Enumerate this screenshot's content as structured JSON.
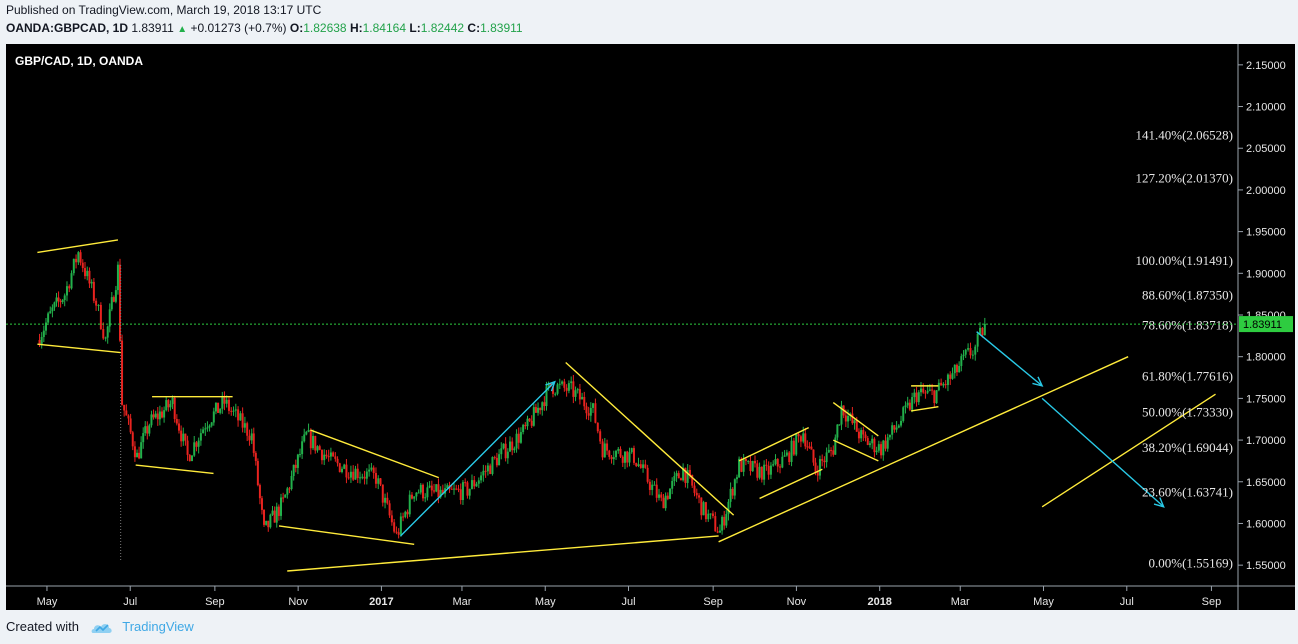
{
  "header": {
    "published": "Published on TradingView.com, March 19, 2018 13:17 UTC",
    "symbol": "OANDA:GBPCAD, 1D",
    "last": "1.83911",
    "change": "+0.01273 (+0.7%)",
    "open_label": "O:",
    "open": "1.82638",
    "high_label": "H:",
    "high": "1.84164",
    "low_label": "L:",
    "low": "1.82442",
    "close_label": "C:",
    "close": "1.83911"
  },
  "footer": {
    "created_with": "Created with",
    "brand": "TradingView"
  },
  "colors": {
    "background": "#000000",
    "up": "#22b04b",
    "down": "#e8231f",
    "trendline": "#ffeb3b",
    "arrow": "#29c9e6",
    "price_line": "#2ecc40"
  },
  "chart_data": {
    "type": "candlestick",
    "title": "GBP/CAD, 1D, OANDA",
    "x_ticks": [
      "May",
      "Jul",
      "Sep",
      "Nov",
      "2017",
      "Mar",
      "May",
      "Jul",
      "Sep",
      "Nov",
      "2018",
      "Mar",
      "May",
      "Jul",
      "Sep"
    ],
    "y_ticks": [
      "2.15000",
      "2.10000",
      "2.05000",
      "2.00000",
      "1.95000",
      "1.90000",
      "1.85000",
      "1.80000",
      "1.75000",
      "1.70000",
      "1.65000",
      "1.60000",
      "1.55000"
    ],
    "ylim": [
      1.525,
      2.175
    ],
    "current_price": 1.83911,
    "current_price_label": "1.83911",
    "price_path": [
      [
        "2016-04-24",
        1.82
      ],
      [
        "2016-05-05",
        1.855
      ],
      [
        "2016-05-14",
        1.875
      ],
      [
        "2016-05-24",
        1.925
      ],
      [
        "2016-06-06",
        1.865
      ],
      [
        "2016-06-13",
        1.82
      ],
      [
        "2016-06-22",
        1.905
      ],
      [
        "2016-06-25",
        1.745
      ],
      [
        "2016-07-06",
        1.68
      ],
      [
        "2016-07-15",
        1.72
      ],
      [
        "2016-08-01",
        1.745
      ],
      [
        "2016-08-12",
        1.68
      ],
      [
        "2016-08-25",
        1.72
      ],
      [
        "2016-09-08",
        1.745
      ],
      [
        "2016-09-28",
        1.705
      ],
      [
        "2016-10-07",
        1.59
      ],
      [
        "2016-10-21",
        1.625
      ],
      [
        "2016-11-07",
        1.705
      ],
      [
        "2016-11-25",
        1.675
      ],
      [
        "2016-12-08",
        1.665
      ],
      [
        "2016-12-28",
        1.655
      ],
      [
        "2017-01-12",
        1.585
      ],
      [
        "2017-01-25",
        1.64
      ],
      [
        "2017-02-15",
        1.635
      ],
      [
        "2017-03-05",
        1.64
      ],
      [
        "2017-03-25",
        1.675
      ],
      [
        "2017-04-18",
        1.715
      ],
      [
        "2017-05-05",
        1.765
      ],
      [
        "2017-05-20",
        1.76
      ],
      [
        "2017-06-05",
        1.735
      ],
      [
        "2017-06-12",
        1.69
      ],
      [
        "2017-07-05",
        1.68
      ],
      [
        "2017-07-25",
        1.625
      ],
      [
        "2017-08-10",
        1.665
      ],
      [
        "2017-08-25",
        1.615
      ],
      [
        "2017-09-06",
        1.59
      ],
      [
        "2017-09-20",
        1.67
      ],
      [
        "2017-10-10",
        1.66
      ],
      [
        "2017-10-25",
        1.68
      ],
      [
        "2017-11-06",
        1.71
      ],
      [
        "2017-11-15",
        1.665
      ],
      [
        "2017-11-28",
        1.69
      ],
      [
        "2017-12-04",
        1.74
      ],
      [
        "2017-12-20",
        1.7
      ],
      [
        "2018-01-02",
        1.69
      ],
      [
        "2018-01-15",
        1.72
      ],
      [
        "2018-01-28",
        1.755
      ],
      [
        "2018-02-10",
        1.755
      ],
      [
        "2018-02-25",
        1.78
      ],
      [
        "2018-03-05",
        1.8
      ],
      [
        "2018-03-12",
        1.81
      ],
      [
        "2018-03-19",
        1.83911
      ]
    ],
    "fibonacci_levels": [
      {
        "label": "141.40%(2.06528)",
        "value": 2.06528
      },
      {
        "label": "127.20%(2.01370)",
        "value": 2.0137
      },
      {
        "label": "100.00%(1.91491)",
        "value": 1.91491
      },
      {
        "label": "88.60%(1.87350)",
        "value": 1.8735
      },
      {
        "label": "78.60%(1.83718)",
        "value": 1.83718
      },
      {
        "label": "61.80%(1.77616)",
        "value": 1.77616
      },
      {
        "label": "50.00%(1.73330)",
        "value": 1.7333
      },
      {
        "label": "38.20%(1.69044)",
        "value": 1.69044
      },
      {
        "label": "23.60%(1.63741)",
        "value": 1.63741
      },
      {
        "label": "0.00%(1.55169)",
        "value": 1.55169
      }
    ],
    "trendlines": [
      [
        [
          "2016-04-24",
          1.925
        ],
        [
          "2016-06-22",
          1.94
        ]
      ],
      [
        [
          "2016-04-24",
          1.815
        ],
        [
          "2016-06-24",
          1.805
        ]
      ],
      [
        [
          "2016-07-05",
          1.67
        ],
        [
          "2016-08-31",
          1.66
        ]
      ],
      [
        [
          "2016-07-17",
          1.752
        ],
        [
          "2016-09-14",
          1.752
        ]
      ],
      [
        [
          "2016-10-18",
          1.597
        ],
        [
          "2017-01-25",
          1.575
        ]
      ],
      [
        [
          "2016-11-10",
          1.712
        ],
        [
          "2017-02-12",
          1.655
        ]
      ],
      [
        [
          "2016-10-24",
          1.543
        ],
        [
          "2017-09-05",
          1.585
        ]
      ],
      [
        [
          "2017-05-16",
          1.793
        ],
        [
          "2017-09-16",
          1.61
        ]
      ],
      [
        [
          "2017-09-05",
          1.578
        ],
        [
          "2018-07-02",
          1.8
        ]
      ],
      [
        [
          "2017-09-20",
          1.675
        ],
        [
          "2017-11-10",
          1.715
        ]
      ],
      [
        [
          "2017-10-05",
          1.63
        ],
        [
          "2017-11-20",
          1.665
        ]
      ],
      [
        [
          "2017-11-28",
          1.745
        ],
        [
          "2017-12-31",
          1.705
        ]
      ],
      [
        [
          "2017-11-28",
          1.7
        ],
        [
          "2017-12-31",
          1.675
        ]
      ],
      [
        [
          "2018-01-24",
          1.765
        ],
        [
          "2018-02-13",
          1.765
        ]
      ],
      [
        [
          "2018-01-24",
          1.735
        ],
        [
          "2018-02-13",
          1.74
        ]
      ],
      [
        [
          "2018-04-30",
          1.62
        ],
        [
          "2018-09-04",
          1.755
        ]
      ]
    ],
    "arrows": [
      [
        [
          "2017-01-15",
          1.585
        ],
        [
          "2017-05-08",
          1.77
        ]
      ],
      [
        [
          "2018-03-13",
          1.83
        ],
        [
          "2018-04-30",
          1.765
        ]
      ],
      [
        [
          "2018-04-30",
          1.75
        ],
        [
          "2018-07-28",
          1.62
        ]
      ]
    ]
  }
}
